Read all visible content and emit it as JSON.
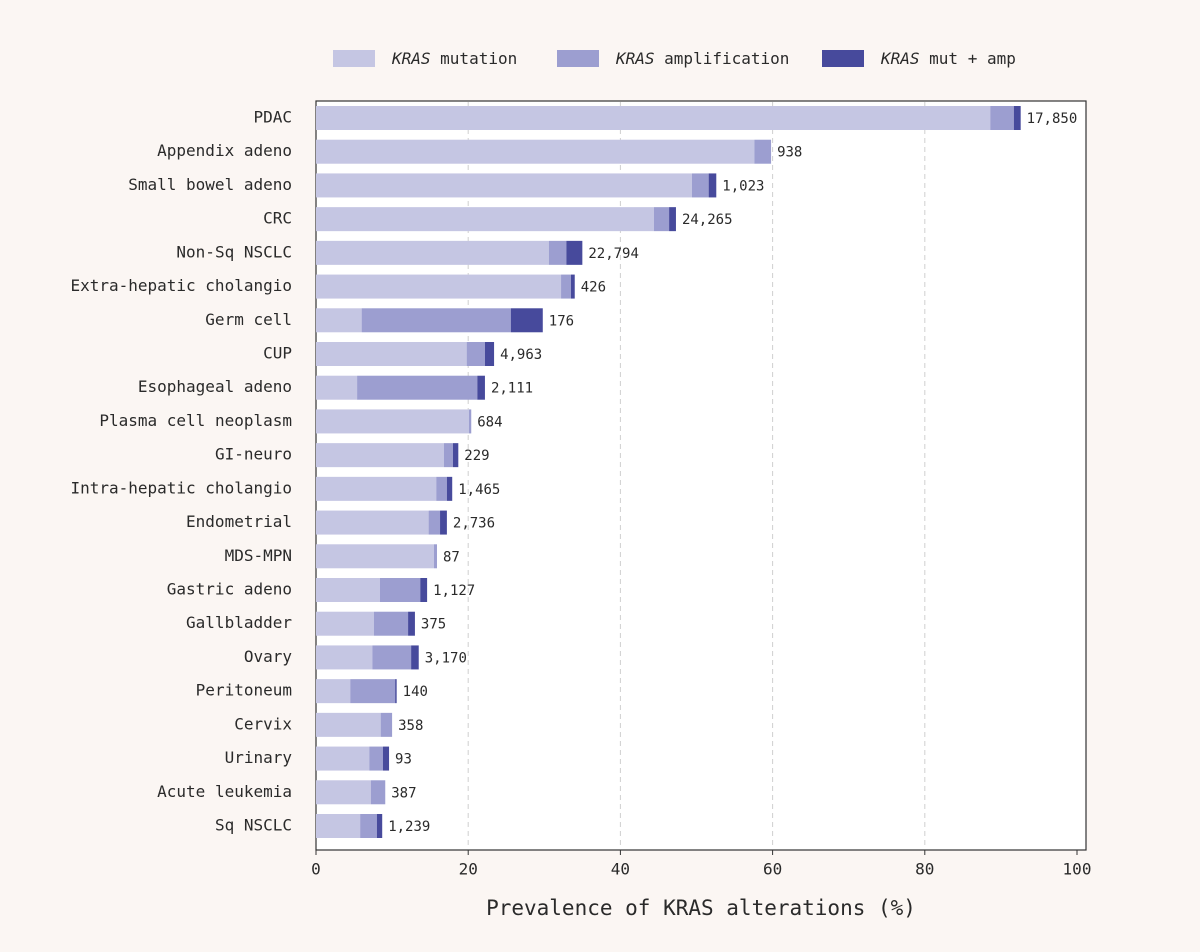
{
  "chart_data": {
    "type": "stacked-horizontal-bar",
    "xlabel": "Prevalence of KRAS alterations (%)",
    "categories": [
      "PDAC",
      "Appendix adeno",
      "Small bowel adeno",
      "CRC",
      "Non-Sq NSCLC",
      "Extra-hepatic cholangio",
      "Germ cell",
      "CUP",
      "Esophageal adeno",
      "Plasma cell neoplasm",
      "GI-neuro",
      "Intra-hepatic cholangio",
      "Endometrial",
      "MDS-MPN",
      "Gastric adeno",
      "Gallbladder",
      "Ovary",
      "Peritoneum",
      "Cervix",
      "Urinary",
      "Acute leukemia",
      "Sq NSCLC"
    ],
    "series": [
      {
        "name": "KRAS mutation",
        "color": "#c5c6e3",
        "values": [
          88.6,
          57.6,
          49.4,
          44.4,
          30.6,
          32.2,
          6.0,
          19.8,
          5.4,
          20.1,
          16.8,
          15.8,
          14.8,
          15.5,
          8.4,
          7.6,
          7.4,
          4.5,
          8.5,
          7.0,
          7.2,
          5.8
        ]
      },
      {
        "name": "KRAS amplification",
        "color": "#9c9ed0",
        "values": [
          3.1,
          2.2,
          2.2,
          2.0,
          2.3,
          1.3,
          19.6,
          2.4,
          15.8,
          0.3,
          1.2,
          1.4,
          1.5,
          0.4,
          5.3,
          4.5,
          5.1,
          5.9,
          1.5,
          1.8,
          1.9,
          2.2
        ]
      },
      {
        "name": "KRAS mut + amp",
        "color": "#474a9c",
        "values": [
          0.9,
          0,
          1.0,
          0.9,
          2.1,
          0.5,
          4.2,
          1.2,
          1.0,
          0,
          0.7,
          0.7,
          0.9,
          0,
          0.9,
          0.9,
          1.0,
          0.2,
          0,
          0.8,
          0,
          0.7
        ]
      }
    ],
    "n_labels": [
      "17,850",
      "938",
      "1,023",
      "24,265",
      "22,794",
      "426",
      "176",
      "4,963",
      "2,111",
      "684",
      "229",
      "1,465",
      "2,736",
      "87",
      "1,127",
      "375",
      "3,170",
      "140",
      "358",
      "93",
      "387",
      "1,239"
    ],
    "xlim": [
      0,
      100
    ],
    "xticks": [
      0,
      20,
      40,
      60,
      80,
      100
    ],
    "grid": true,
    "legend": "top"
  }
}
